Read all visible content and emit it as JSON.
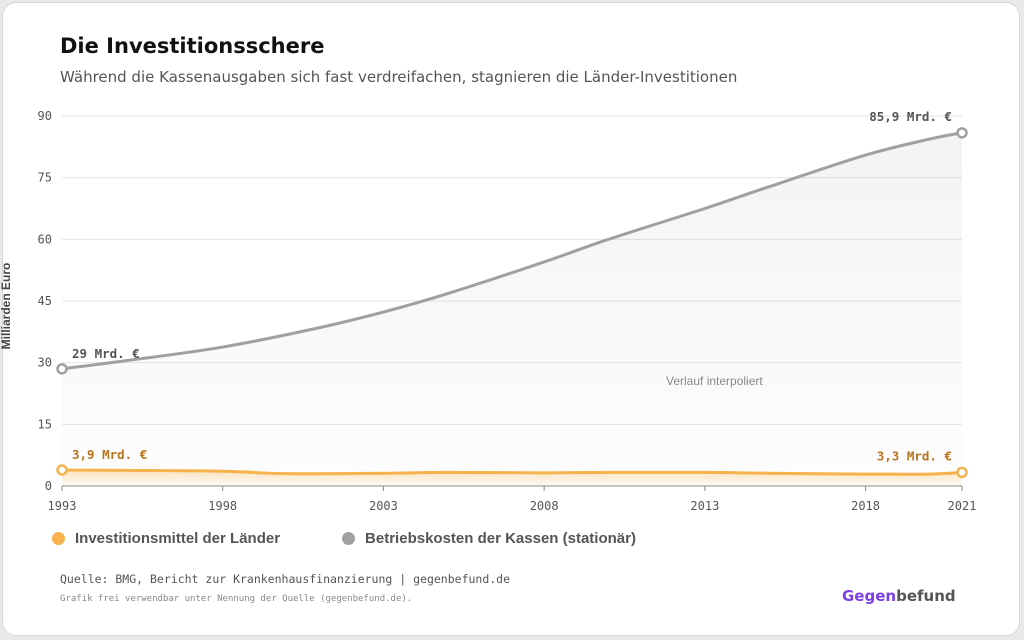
{
  "title": "Die Investitionsschere",
  "subtitle": "Während die Kassenausgaben sich fast verdreifachen, stagnieren die Länder-Investitionen",
  "colors": {
    "laender": "#f6b24c",
    "kassen": "#a0a0a0",
    "brand_purple": "#7b3fe4",
    "brand_gray": "#555555"
  },
  "legend": {
    "laender": "Investitionsmittel der Länder",
    "kassen": "Betriebskosten der Kassen (stationär)"
  },
  "footer": {
    "source": "Quelle: BMG, Bericht zur Krankenhausfinanzierung | gegenbefund.de",
    "license": "Grafik frei verwendbar unter Nennung der Quelle (gegenbefund.de).",
    "brand_part1": "Gegen",
    "brand_part2": "befund"
  },
  "chart_data": {
    "type": "area",
    "ylabel": "Milliarden Euro",
    "xlabel": "",
    "ylim": [
      0,
      90
    ],
    "xlim": [
      1993,
      2021
    ],
    "yticks": [
      "0",
      "15",
      "30",
      "45",
      "60",
      "75",
      "90"
    ],
    "xticks": [
      "1993",
      "1998",
      "2003",
      "2008",
      "2013",
      "2018",
      "2021"
    ],
    "grid": true,
    "legend_position": "bottom-left",
    "annotation": "Verlauf interpoliert",
    "series": [
      {
        "key": "kassen",
        "x": [
          1993,
          1995,
          1998,
          2001,
          2003,
          2005,
          2008,
          2010,
          2013,
          2015,
          2018,
          2020,
          2021
        ],
        "values": [
          28.5,
          30.5,
          33.8,
          38.5,
          42.3,
          46.8,
          54.5,
          60.0,
          67.5,
          72.8,
          80.5,
          84.4,
          85.9
        ],
        "start_label": "29 Mrd. €",
        "end_label": "85,9 Mrd. €"
      },
      {
        "key": "laender",
        "x": [
          1993,
          1995,
          1998,
          2000,
          2003,
          2005,
          2008,
          2010,
          2013,
          2015,
          2018,
          2020,
          2021
        ],
        "values": [
          3.9,
          3.8,
          3.6,
          3.0,
          3.1,
          3.3,
          3.2,
          3.3,
          3.3,
          3.1,
          2.9,
          2.9,
          3.3
        ],
        "start_label": "3,9 Mrd. €",
        "end_label": "3,3 Mrd. €"
      }
    ]
  }
}
